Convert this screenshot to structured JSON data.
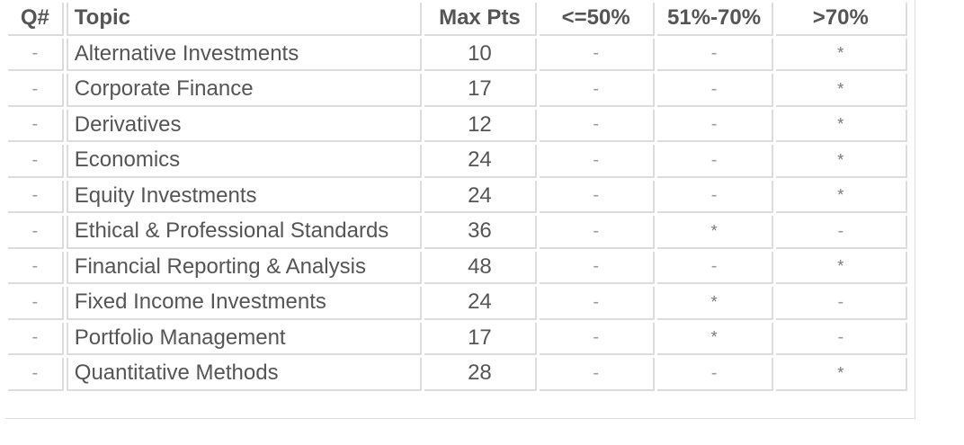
{
  "table": {
    "headers": {
      "q": "Q#",
      "topic": "Topic",
      "max_pts": "Max Pts",
      "low": "<=50%",
      "mid": "51%-70%",
      "high": ">70%"
    },
    "rows": [
      {
        "q": "-",
        "topic": "Alternative Investments",
        "max": "10",
        "low": "-",
        "mid": "-",
        "high": "*"
      },
      {
        "q": "-",
        "topic": "Corporate Finance",
        "max": "17",
        "low": "-",
        "mid": "-",
        "high": "*"
      },
      {
        "q": "-",
        "topic": "Derivatives",
        "max": "12",
        "low": "-",
        "mid": "-",
        "high": "*"
      },
      {
        "q": "-",
        "topic": "Economics",
        "max": "24",
        "low": "-",
        "mid": "-",
        "high": "*"
      },
      {
        "q": "-",
        "topic": "Equity Investments",
        "max": "24",
        "low": "-",
        "mid": "-",
        "high": "*"
      },
      {
        "q": "-",
        "topic": "Ethical & Professional Standards",
        "max": "36",
        "low": "-",
        "mid": "*",
        "high": "-"
      },
      {
        "q": "-",
        "topic": "Financial Reporting & Analysis",
        "max": "48",
        "low": "-",
        "mid": "-",
        "high": "*"
      },
      {
        "q": "-",
        "topic": "Fixed Income Investments",
        "max": "24",
        "low": "-",
        "mid": "*",
        "high": "-"
      },
      {
        "q": "-",
        "topic": "Portfolio Management",
        "max": "17",
        "low": "-",
        "mid": "*",
        "high": "-"
      },
      {
        "q": "-",
        "topic": "Quantitative Methods",
        "max": "28",
        "low": "-",
        "mid": "-",
        "high": "*"
      }
    ]
  }
}
